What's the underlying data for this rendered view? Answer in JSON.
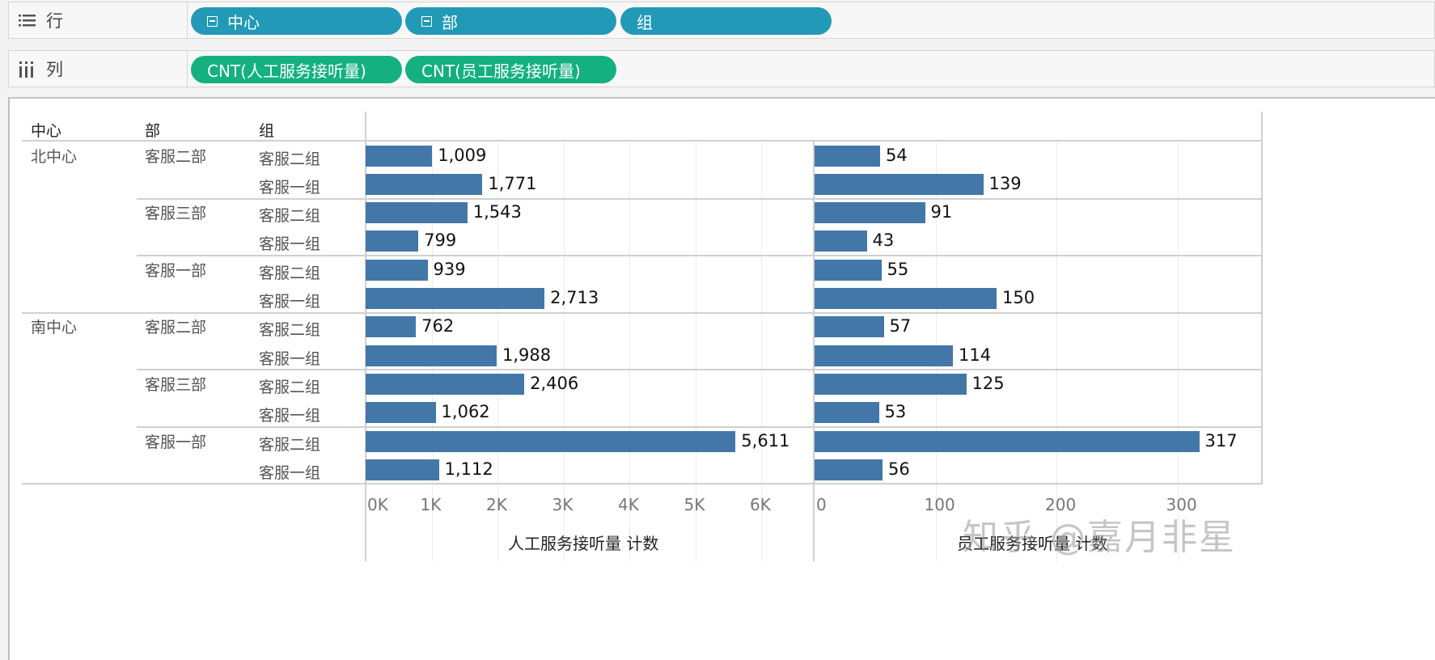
{
  "shelves": {
    "rows": {
      "label": "行",
      "icon": "rows-list-icon",
      "pills": [
        {
          "label": "中心",
          "collapsible": true
        },
        {
          "label": "部",
          "collapsible": true
        },
        {
          "label": "组",
          "collapsible": false
        }
      ]
    },
    "columns": {
      "label": "列",
      "icon": "columns-bars-icon",
      "pills": [
        {
          "label": "CNT(人工服务接听量)"
        },
        {
          "label": "CNT(员工服务接听量)"
        }
      ]
    }
  },
  "table": {
    "headers": {
      "center": "中心",
      "dept": "部",
      "group": "组"
    }
  },
  "colors": {
    "bar": "#4277a8",
    "dimension_pill": "#2299b7",
    "measure_pill": "#14b07f"
  },
  "chart_data": {
    "type": "bar",
    "orientation": "horizontal",
    "categories": [
      "北中心 / 客服二部 / 客服二组",
      "北中心 / 客服二部 / 客服一组",
      "北中心 / 客服三部 / 客服二组",
      "北中心 / 客服三部 / 客服一组",
      "北中心 / 客服一部 / 客服二组",
      "北中心 / 客服一部 / 客服一组",
      "南中心 / 客服二部 / 客服二组",
      "南中心 / 客服二部 / 客服一组",
      "南中心 / 客服三部 / 客服二组",
      "南中心 / 客服三部 / 客服一组",
      "南中心 / 客服一部 / 客服二组",
      "南中心 / 客服一部 / 客服一组"
    ],
    "rows": [
      {
        "center": "北中心",
        "dept": "客服二部",
        "group": "客服二组"
      },
      {
        "center": "",
        "dept": "",
        "group": "客服一组"
      },
      {
        "center": "",
        "dept": "客服三部",
        "group": "客服二组"
      },
      {
        "center": "",
        "dept": "",
        "group": "客服一组"
      },
      {
        "center": "",
        "dept": "客服一部",
        "group": "客服二组"
      },
      {
        "center": "",
        "dept": "",
        "group": "客服一组"
      },
      {
        "center": "南中心",
        "dept": "客服二部",
        "group": "客服二组"
      },
      {
        "center": "",
        "dept": "",
        "group": "客服一组"
      },
      {
        "center": "",
        "dept": "客服三部",
        "group": "客服二组"
      },
      {
        "center": "",
        "dept": "",
        "group": "客服一组"
      },
      {
        "center": "",
        "dept": "客服一部",
        "group": "客服二组"
      },
      {
        "center": "",
        "dept": "",
        "group": "客服一组"
      }
    ],
    "series": [
      {
        "name": "人工服务接听量 计数",
        "values": [
          1009,
          1771,
          1543,
          799,
          939,
          2713,
          762,
          1988,
          2406,
          1062,
          5611,
          1112
        ],
        "labels": [
          "1,009",
          "1,771",
          "1,543",
          "799",
          "939",
          "2,713",
          "762",
          "1,988",
          "2,406",
          "1,062",
          "5,611",
          "1,112"
        ],
        "xlabel": "人工服务接听量 计数",
        "ticks": [
          "0K",
          "1K",
          "2K",
          "3K",
          "4K",
          "5K",
          "6K"
        ],
        "xlim": [
          0,
          6700
        ]
      },
      {
        "name": "员工服务接听量 计数",
        "values": [
          54,
          139,
          91,
          43,
          55,
          150,
          57,
          114,
          125,
          53,
          317,
          56
        ],
        "labels": [
          "54",
          "139",
          "91",
          "43",
          "55",
          "150",
          "57",
          "114",
          "125",
          "53",
          "317",
          "56"
        ],
        "xlabel": "员工服务接听量 计数",
        "ticks": [
          "0",
          "100",
          "200",
          "300"
        ],
        "xlim": [
          0,
          368
        ]
      }
    ],
    "title": "",
    "grid": true,
    "legend": "none"
  },
  "watermark": "知乎 @嘉月非星"
}
